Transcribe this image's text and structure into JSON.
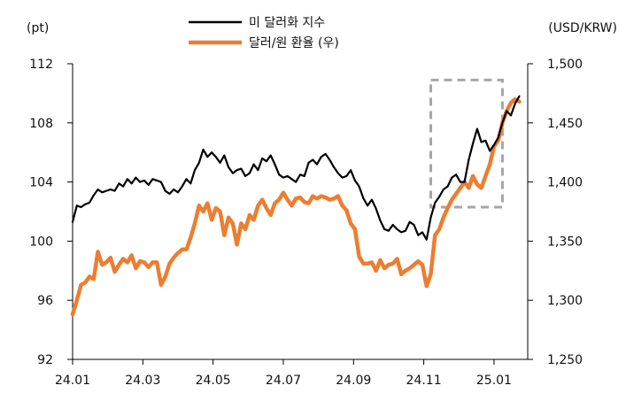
{
  "chart_data": {
    "type": "line",
    "title": "",
    "left_axis_unit": "(pt)",
    "right_axis_unit": "(USD/KRW)",
    "left_ylim": [
      92,
      112
    ],
    "left_yticks": [
      92,
      96,
      100,
      104,
      108,
      112
    ],
    "left_ytick_labels": [
      "92",
      "96",
      "100",
      "104",
      "108",
      "112"
    ],
    "right_ylim": [
      1250,
      1500
    ],
    "right_yticks": [
      1250,
      1300,
      1350,
      1400,
      1450,
      1500
    ],
    "right_ytick_labels": [
      "1,250",
      "1,300",
      "1,350",
      "1,400",
      "1,450",
      "1,500"
    ],
    "x_ticks": [
      "24.01",
      "24.03",
      "24.05",
      "24.07",
      "24.09",
      "24.11",
      "25.01"
    ],
    "grid": false,
    "legend_position": "top-center",
    "series": [
      {
        "name": "미 달러화 지수",
        "axis": "left",
        "color": "#000000",
        "x": [
          2024.0,
          2024.01,
          2024.02,
          2024.03,
          2024.04,
          2024.05,
          2024.06,
          2024.07,
          2024.08,
          2024.09,
          2024.1,
          2024.11,
          2024.12,
          2024.13,
          2024.14,
          2024.15,
          2024.16,
          2024.17,
          2024.18,
          2024.19,
          2024.2,
          2024.21,
          2024.22,
          2024.23,
          2024.24,
          2024.25,
          2024.26,
          2024.27,
          2024.28,
          2024.29,
          2024.3,
          2024.31,
          2024.32,
          2024.33,
          2024.34,
          2024.35,
          2024.36,
          2024.37,
          2024.38,
          2024.39,
          2024.4,
          2024.41,
          2024.42,
          2024.43,
          2024.44,
          2024.45,
          2024.46,
          2024.47,
          2024.48,
          2024.49,
          2024.5,
          2024.51,
          2024.52,
          2024.53,
          2024.54,
          2024.55,
          2024.56,
          2024.57,
          2024.58,
          2024.59,
          2024.6,
          2024.61,
          2024.62,
          2024.63,
          2024.64,
          2024.65,
          2024.66,
          2024.67,
          2024.68,
          2024.69,
          2024.7,
          2024.71,
          2024.72,
          2024.73,
          2024.74,
          2024.75,
          2024.76,
          2024.77,
          2024.78,
          2024.79,
          2024.8,
          2024.81,
          2024.82,
          2024.83,
          2024.84,
          2024.85,
          2024.86,
          2024.87,
          2024.88,
          2024.89,
          2024.9,
          2024.91,
          2024.92,
          2024.93,
          2024.94,
          2024.95,
          2024.96,
          2024.97,
          2024.98,
          2024.99,
          2025.0,
          2025.01,
          2025.02,
          2025.03,
          2025.04,
          2025.05,
          2025.06
        ],
        "values": [
          101.3,
          102.4,
          102.3,
          102.5,
          102.6,
          103.1,
          103.5,
          103.3,
          103.4,
          103.5,
          103.4,
          103.9,
          103.7,
          104.2,
          103.9,
          104.3,
          104.0,
          104.1,
          103.8,
          104.2,
          104.1,
          104.0,
          103.4,
          103.2,
          103.5,
          103.3,
          103.7,
          104.2,
          103.9,
          104.8,
          105.3,
          106.2,
          105.7,
          106.0,
          105.7,
          105.3,
          105.8,
          105.0,
          104.6,
          104.8,
          104.9,
          104.4,
          104.6,
          105.2,
          104.8,
          105.6,
          105.4,
          105.8,
          105.2,
          104.5,
          104.3,
          104.4,
          104.2,
          104.0,
          104.5,
          104.4,
          105.3,
          105.5,
          105.2,
          105.7,
          105.9,
          105.5,
          105.0,
          104.6,
          104.3,
          104.4,
          104.8,
          104.1,
          103.7,
          102.9,
          102.4,
          102.8,
          102.2,
          101.4,
          100.8,
          100.7,
          101.1,
          100.8,
          100.6,
          100.7,
          101.3,
          101.1,
          100.4,
          100.6,
          100.1,
          101.6,
          102.6,
          103.0,
          103.5,
          103.7,
          104.3,
          104.5,
          104.0,
          104.0,
          105.5,
          106.6,
          107.6,
          106.7,
          106.8,
          106.1,
          106.5,
          107.0,
          108.0,
          108.8,
          108.5,
          109.3,
          109.8
        ]
      },
      {
        "name": "달러/원 환율 (우)",
        "axis": "right",
        "color": "#ED7D31",
        "x": [
          2024.0,
          2024.01,
          2024.02,
          2024.03,
          2024.04,
          2024.05,
          2024.06,
          2024.07,
          2024.08,
          2024.09,
          2024.1,
          2024.11,
          2024.12,
          2024.13,
          2024.14,
          2024.15,
          2024.16,
          2024.17,
          2024.18,
          2024.19,
          2024.2,
          2024.21,
          2024.22,
          2024.23,
          2024.24,
          2024.25,
          2024.26,
          2024.27,
          2024.28,
          2024.29,
          2024.3,
          2024.31,
          2024.32,
          2024.33,
          2024.34,
          2024.35,
          2024.36,
          2024.37,
          2024.38,
          2024.39,
          2024.4,
          2024.41,
          2024.42,
          2024.43,
          2024.44,
          2024.45,
          2024.46,
          2024.47,
          2024.48,
          2024.49,
          2024.5,
          2024.51,
          2024.52,
          2024.53,
          2024.54,
          2024.55,
          2024.56,
          2024.57,
          2024.58,
          2024.59,
          2024.6,
          2024.61,
          2024.62,
          2024.63,
          2024.64,
          2024.65,
          2024.66,
          2024.67,
          2024.68,
          2024.69,
          2024.7,
          2024.71,
          2024.72,
          2024.73,
          2024.74,
          2024.75,
          2024.76,
          2024.77,
          2024.78,
          2024.79,
          2024.8,
          2024.81,
          2024.82,
          2024.83,
          2024.84,
          2024.85,
          2024.86,
          2024.87,
          2024.88,
          2024.89,
          2024.9,
          2024.91,
          2024.92,
          2024.93,
          2024.94,
          2024.95,
          2024.96,
          2024.97,
          2024.98,
          2024.99,
          2025.0,
          2025.01,
          2025.02,
          2025.03,
          2025.04,
          2025.05,
          2025.06
        ],
        "values": [
          1288,
          1300,
          1313,
          1315,
          1320,
          1318,
          1341,
          1330,
          1332,
          1336,
          1324,
          1330,
          1335,
          1332,
          1338,
          1327,
          1333,
          1332,
          1328,
          1332,
          1332,
          1313,
          1320,
          1331,
          1336,
          1340,
          1343,
          1343,
          1353,
          1365,
          1380,
          1375,
          1382,
          1368,
          1378,
          1375,
          1355,
          1370,
          1365,
          1347,
          1365,
          1360,
          1372,
          1368,
          1380,
          1385,
          1378,
          1372,
          1382,
          1385,
          1391,
          1385,
          1380,
          1386,
          1387,
          1383,
          1382,
          1388,
          1386,
          1388,
          1387,
          1385,
          1386,
          1388,
          1380,
          1376,
          1365,
          1360,
          1337,
          1331,
          1331,
          1332,
          1325,
          1334,
          1327,
          1330,
          1331,
          1335,
          1322,
          1325,
          1327,
          1330,
          1333,
          1330,
          1312,
          1322,
          1355,
          1360,
          1370,
          1378,
          1385,
          1390,
          1395,
          1400,
          1395,
          1405,
          1398,
          1395,
          1405,
          1415,
          1430,
          1435,
          1450,
          1460,
          1467,
          1470,
          1468
        ]
      }
    ],
    "annotations": [
      {
        "type": "dashed-box",
        "color": "#A6A6A6",
        "x_range": [
          2024.85,
          2025.02
        ],
        "left_y_range": [
          102.3,
          110.9
        ]
      }
    ]
  },
  "colors": {
    "axis": "#000000",
    "usd_index": "#000000",
    "usd_krw": "#ED7D31",
    "highlight_box": "#A6A6A6"
  }
}
